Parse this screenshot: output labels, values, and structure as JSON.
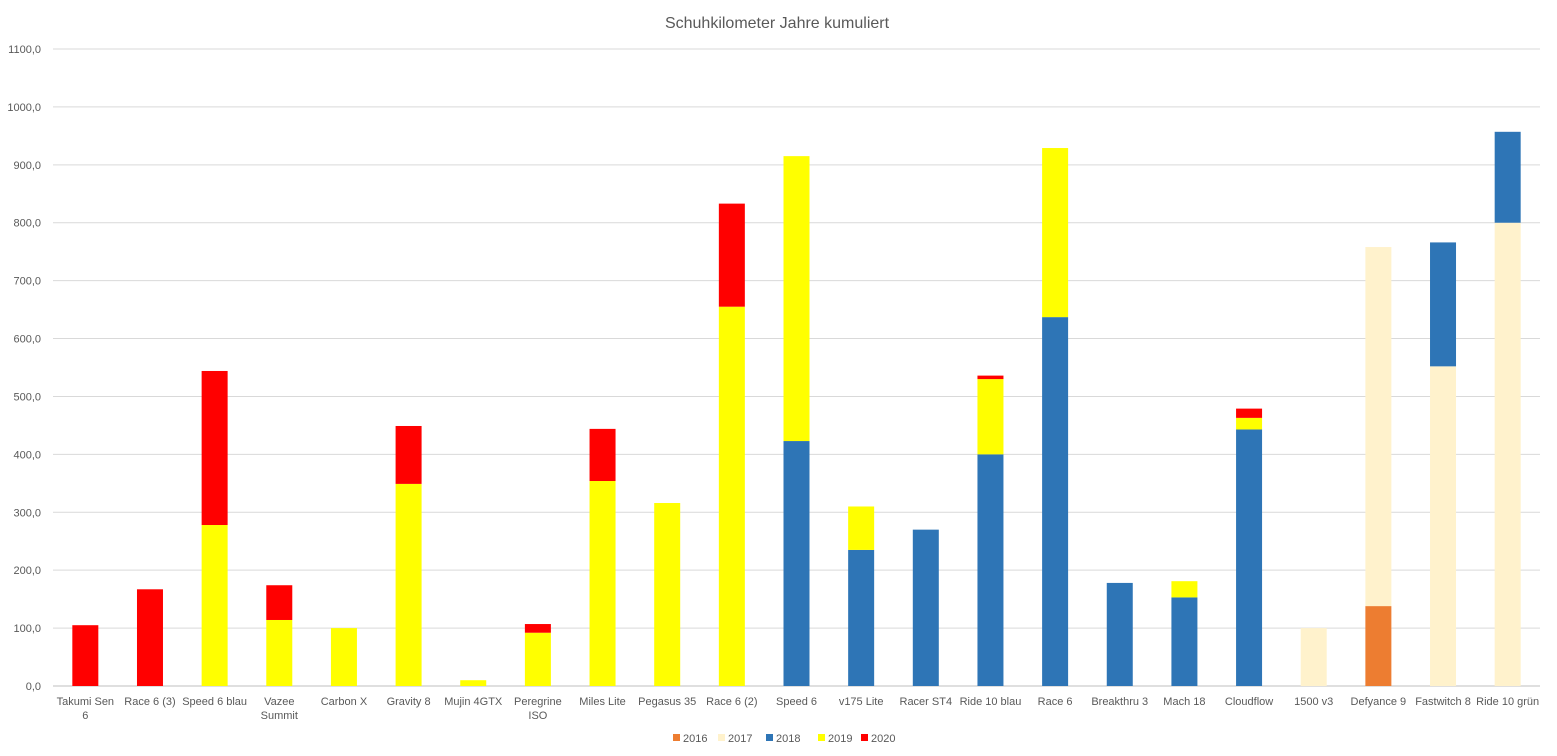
{
  "chart_data": {
    "type": "bar",
    "stacked": true,
    "title": "Schuhkilometer Jahre kumuliert",
    "xlabel": "",
    "ylabel": "",
    "ylim": [
      0,
      1100
    ],
    "ytick_step": 100,
    "ytick_labels": [
      "0,0",
      "100,0",
      "200,0",
      "300,0",
      "400,0",
      "500,0",
      "600,0",
      "700,0",
      "800,0",
      "900,0",
      "1000,0",
      "1100,0"
    ],
    "grid": true,
    "legend_position": "bottom",
    "categories": [
      [
        "Takumi Sen",
        "6"
      ],
      [
        "Race 6 (3)"
      ],
      [
        "Speed 6 blau"
      ],
      [
        "Vazee",
        "Summit"
      ],
      [
        "Carbon X"
      ],
      [
        "Gravity 8"
      ],
      [
        "Mujin 4GTX"
      ],
      [
        "Peregrine",
        "ISO"
      ],
      [
        "Miles Lite"
      ],
      [
        "Pegasus 35"
      ],
      [
        "Race 6 (2)"
      ],
      [
        "Speed 6"
      ],
      [
        "v175 Lite"
      ],
      [
        "Racer ST4"
      ],
      [
        "Ride 10 blau"
      ],
      [
        "Race 6"
      ],
      [
        "Breakthru 3"
      ],
      [
        "Mach 18"
      ],
      [
        "Cloudflow"
      ],
      [
        "1500 v3"
      ],
      [
        "Defyance 9"
      ],
      [
        "Fastwitch 8"
      ],
      [
        "Ride 10 grün"
      ]
    ],
    "series": [
      {
        "name": "2016",
        "color": "#ED7D31",
        "values": [
          0,
          0,
          0,
          0,
          0,
          0,
          0,
          0,
          0,
          0,
          0,
          0,
          0,
          0,
          0,
          0,
          0,
          0,
          0,
          0,
          138,
          0,
          0
        ]
      },
      {
        "name": "2017",
        "color": "#FFF2CC",
        "values": [
          0,
          0,
          0,
          0,
          0,
          0,
          0,
          0,
          0,
          0,
          0,
          0,
          0,
          0,
          0,
          0,
          0,
          0,
          0,
          100,
          620,
          552,
          800
        ]
      },
      {
        "name": "2018",
        "color": "#2E75B6",
        "values": [
          0,
          0,
          0,
          0,
          0,
          0,
          0,
          0,
          0,
          0,
          0,
          423,
          235,
          270,
          400,
          637,
          178,
          153,
          443,
          0,
          0,
          214,
          157
        ]
      },
      {
        "name": "2019",
        "color": "#FFFF00",
        "values": [
          0,
          0,
          278,
          114,
          100,
          349,
          10,
          92,
          354,
          316,
          655,
          492,
          75,
          0,
          130,
          292,
          0,
          28,
          20,
          0,
          0,
          0,
          0
        ]
      },
      {
        "name": "2020",
        "color": "#FF0000",
        "values": [
          105,
          167,
          266,
          60,
          0,
          100,
          0,
          15,
          90,
          0,
          178,
          0,
          0,
          0,
          6,
          0,
          0,
          0,
          16,
          0,
          0,
          0,
          0
        ]
      }
    ]
  }
}
